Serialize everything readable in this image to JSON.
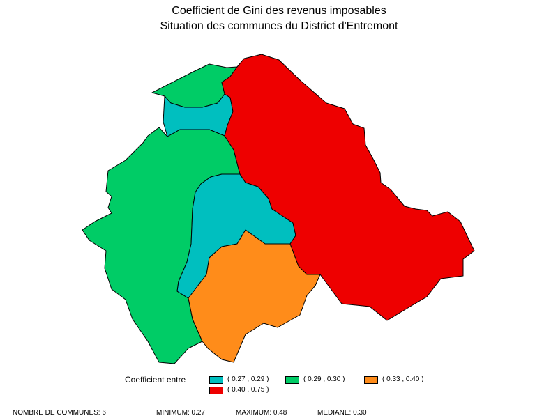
{
  "title": {
    "line1": "Coefficient de Gini des revenus imposables",
    "line2": "Situation des communes du District d'Entremont"
  },
  "legend": {
    "label": "Coefficient entre",
    "classes": [
      {
        "range": "( 0.27 , 0.29 )",
        "color": "#00BFBF"
      },
      {
        "range": "( 0.29 , 0.30 )",
        "color": "#00CC66"
      },
      {
        "range": "( 0.33 , 0.40 )",
        "color": "#FF8C1A"
      },
      {
        "range": "( 0.40 , 0.75 )",
        "color": "#EE0000"
      }
    ]
  },
  "communes": [
    {
      "class": 1
    },
    {
      "class": 0
    },
    {
      "class": 1
    },
    {
      "class": 0
    },
    {
      "class": 2
    },
    {
      "class": 3
    }
  ],
  "footer": {
    "count": "NOMBRE DE COMMUNES: 6",
    "minimum": "MINIMUM: 0.27",
    "maximum": "MAXIMUM: 0.48",
    "median": "MEDIANE: 0.30"
  }
}
